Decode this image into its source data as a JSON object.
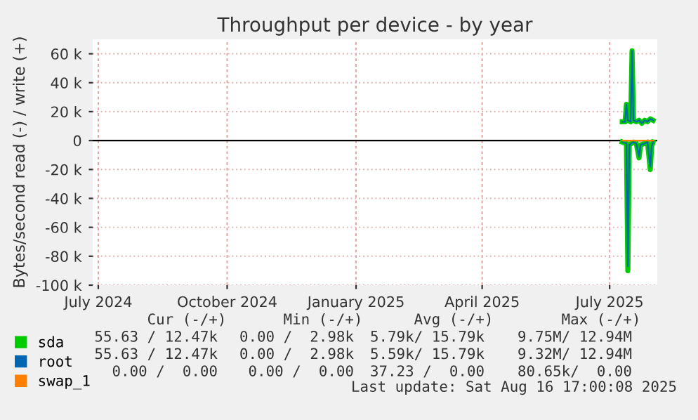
{
  "chart_data": {
    "type": "line",
    "title": "Throughput per device - by year",
    "ylabel": "Bytes/second read (-) / write (+)",
    "xlim": [
      "2024-06-27",
      "2025-08-04"
    ],
    "xticks": [
      {
        "value": "2024-07-01",
        "label": "July 2024"
      },
      {
        "value": "2024-10-01",
        "label": "October 2024"
      },
      {
        "value": "2025-01-01",
        "label": "January 2025"
      },
      {
        "value": "2025-04-01",
        "label": "April 2025"
      },
      {
        "value": "2025-07-01",
        "label": "July 2025"
      }
    ],
    "ylim": [
      -100000,
      70000
    ],
    "yticks": [
      {
        "value": -100000,
        "label": "-100 k"
      },
      {
        "value": -80000,
        "label": "-80 k"
      },
      {
        "value": -60000,
        "label": "-60 k"
      },
      {
        "value": -40000,
        "label": "-40 k"
      },
      {
        "value": -20000,
        "label": "-20 k"
      },
      0,
      {
        "value": 20000,
        "label": "20 k"
      },
      {
        "value": 40000,
        "label": "40 k"
      },
      {
        "value": 60000,
        "label": "60 k"
      }
    ],
    "grid": true,
    "legend": "bottom",
    "ref_lines": [
      {
        "axis": "y",
        "value": 0,
        "color": "#000000"
      }
    ],
    "series": [
      {
        "name": "sda",
        "color": "#00cc00",
        "x": [
          "2025-07-10",
          "2025-07-12",
          "2025-07-13",
          "2025-07-14",
          "2025-07-16",
          "2025-07-17",
          "2025-07-18",
          "2025-07-20",
          "2025-07-22",
          "2025-07-24",
          "2025-07-26",
          "2025-07-28",
          "2025-07-30",
          "2025-08-01"
        ],
        "values": [
          13000,
          13000,
          25000,
          14000,
          13000,
          62000,
          14000,
          13000,
          14000,
          12000,
          14000,
          13000,
          15000,
          14000
        ]
      },
      {
        "color": "#00cc00",
        "x": [
          "2025-07-10",
          "2025-07-13",
          "2025-07-14",
          "2025-07-15",
          "2025-07-18",
          "2025-07-20",
          "2025-07-22",
          "2025-07-23",
          "2025-07-26",
          "2025-07-28",
          "2025-07-30",
          "2025-07-31",
          "2025-08-01"
        ],
        "values": [
          -1000,
          -2000,
          -90000,
          -3000,
          -1000,
          -2000,
          -12000,
          -3000,
          -2000,
          -1000,
          -20000,
          -4000,
          -1000
        ]
      },
      {
        "name": "root",
        "color": "#0066b3",
        "x": [
          "2025-07-10",
          "2025-07-12",
          "2025-07-13",
          "2025-07-14",
          "2025-07-16",
          "2025-07-17",
          "2025-07-18",
          "2025-07-20",
          "2025-07-22",
          "2025-07-24",
          "2025-07-26",
          "2025-07-28",
          "2025-07-30",
          "2025-08-01"
        ],
        "values": [
          13000,
          13000,
          25000,
          14000,
          13000,
          62000,
          14000,
          13000,
          14000,
          12000,
          14000,
          13000,
          15000,
          14000
        ]
      },
      {
        "color": "#0066b3",
        "x": [
          "2025-07-10",
          "2025-07-13",
          "2025-07-14",
          "2025-07-15",
          "2025-07-18",
          "2025-07-20",
          "2025-07-22",
          "2025-07-23",
          "2025-07-26",
          "2025-07-28",
          "2025-07-30",
          "2025-07-31",
          "2025-08-01"
        ],
        "values": [
          -1000,
          -2000,
          -87000,
          -3000,
          -1000,
          -2000,
          -11000,
          -3000,
          -2000,
          -1000,
          -18000,
          -4000,
          -1000
        ]
      },
      {
        "name": "swap_1",
        "color": "#ff8000",
        "x": [
          "2025-07-10",
          "2025-08-01"
        ],
        "values": [
          0,
          0
        ]
      }
    ],
    "annotations": [
      "Cur (-/+)",
      "Min (-/+)",
      "Avg (-/+)",
      "Max (-/+)",
      "55.63 / 12.47k",
      "0.00 /  2.98k",
      "5.79k/ 15.79k",
      "9.75M/ 12.94M",
      "55.63 / 12.47k",
      "0.00 /  2.98k",
      "5.59k/ 15.79k",
      "9.32M/ 12.94M",
      "0.00 /  0.00",
      "0.00 /  0.00",
      "37.23 /  0.00",
      "80.65k/  0.00",
      "Last update: Sat Aug 16 17:00:08 2025"
    ]
  }
}
